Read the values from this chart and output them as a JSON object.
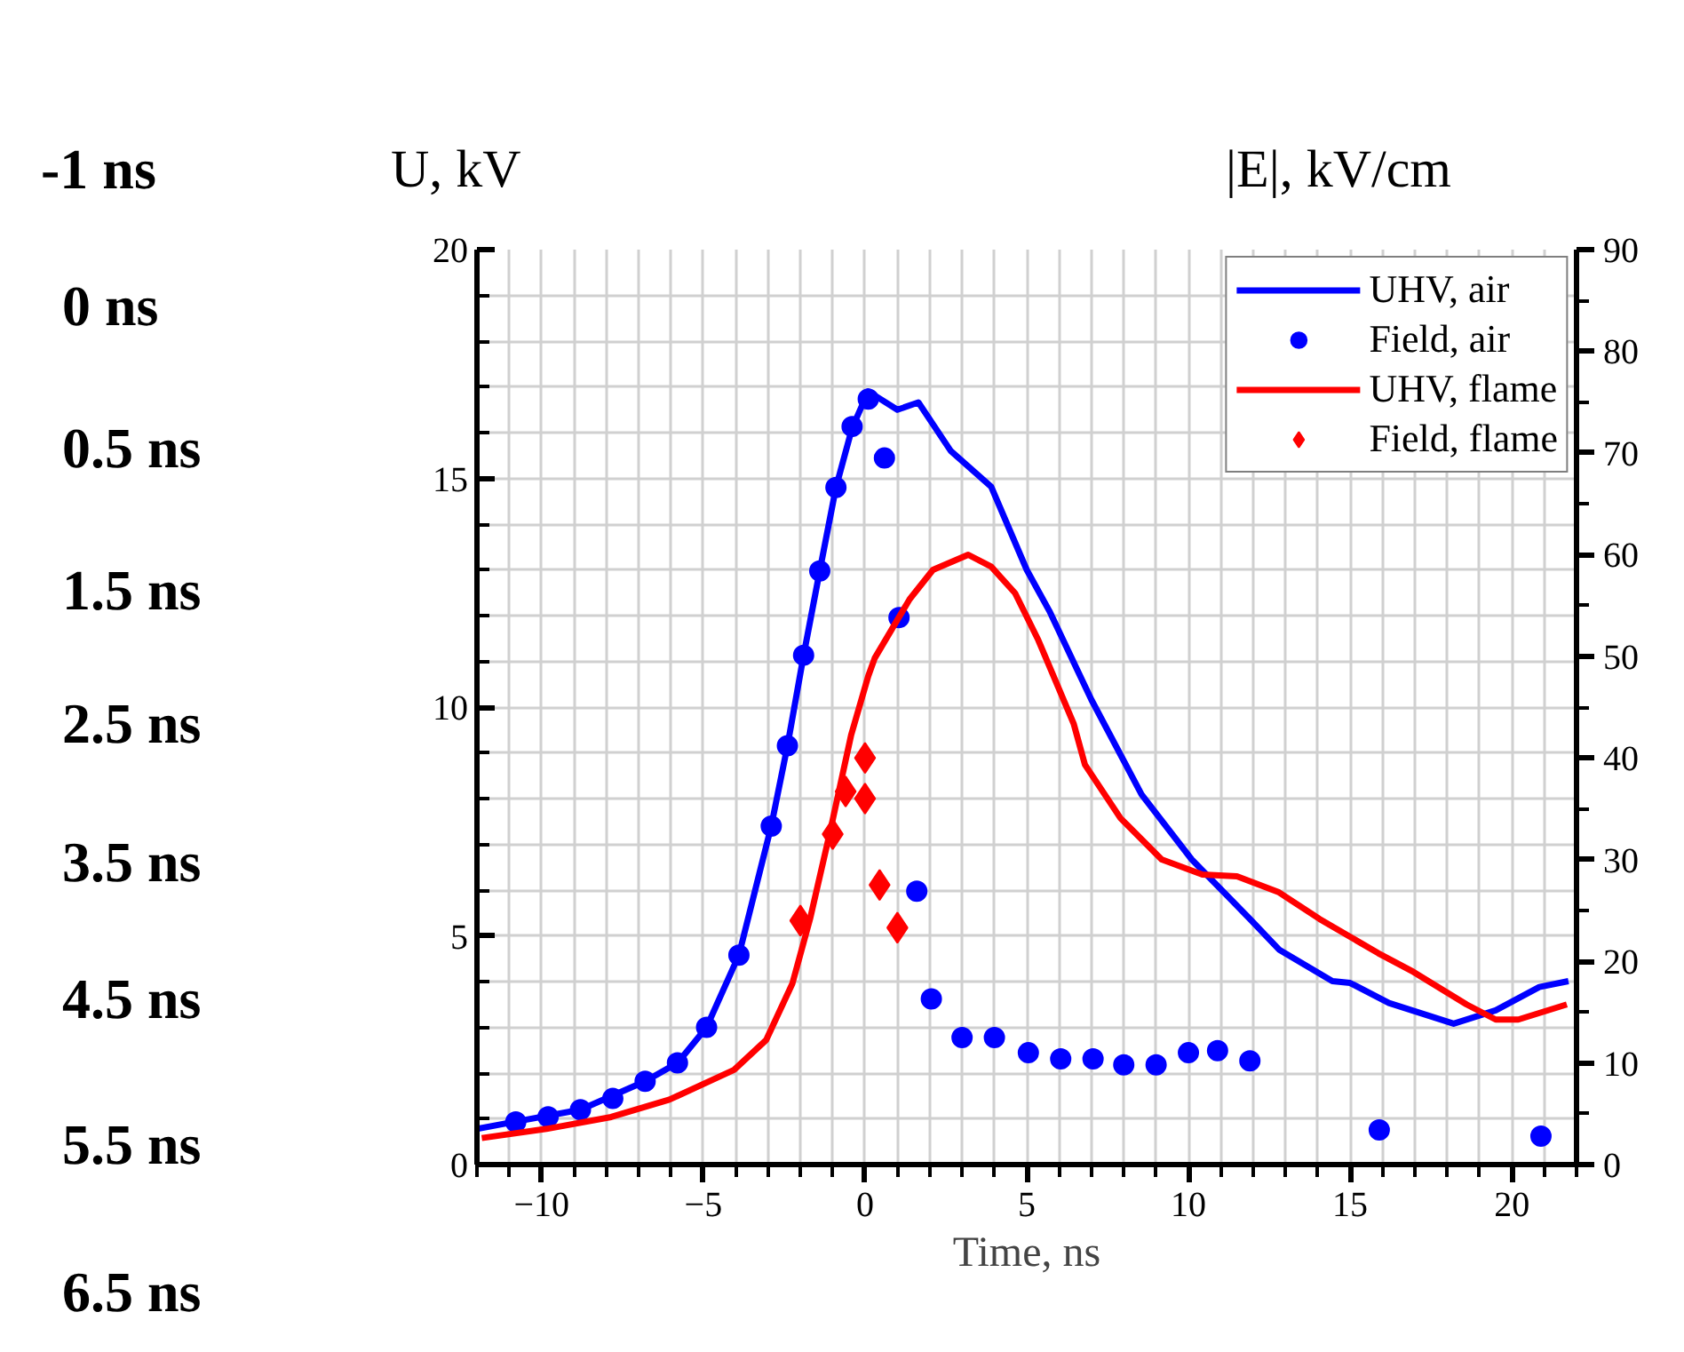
{
  "chart_data": {
    "type": "line",
    "xlabel": "Time, ns",
    "ylabel": "U, kV",
    "y2label": "|E|, kV/cm",
    "annotations": [
      "-1 ns",
      "0 ns",
      "0.5 ns",
      "1.5 ns",
      "2.5 ns",
      "3.5 ns",
      "4.5 ns",
      "5.5 ns",
      "6.5 ns"
    ],
    "xlim": [
      -12,
      22
    ],
    "xticks": [
      {
        "value": -12,
        "label": null
      },
      {
        "value": -11,
        "label": null
      },
      -10,
      {
        "value": -9,
        "label": null
      },
      {
        "value": -8,
        "label": null
      },
      {
        "value": -7,
        "label": null
      },
      {
        "value": -6,
        "label": null
      },
      -5,
      {
        "value": -4,
        "label": null
      },
      {
        "value": -3,
        "label": null
      },
      {
        "value": -2,
        "label": null
      },
      {
        "value": -1,
        "label": null
      },
      0,
      {
        "value": 1,
        "label": null
      },
      {
        "value": 2,
        "label": null
      },
      {
        "value": 3,
        "label": null
      },
      {
        "value": 4,
        "label": null
      },
      5,
      {
        "value": 6,
        "label": null
      },
      {
        "value": 7,
        "label": null
      },
      {
        "value": 8,
        "label": null
      },
      {
        "value": 9,
        "label": null
      },
      10,
      {
        "value": 11,
        "label": null
      },
      {
        "value": 12,
        "label": null
      },
      {
        "value": 13,
        "label": null
      },
      {
        "value": 14,
        "label": null
      },
      15,
      {
        "value": 16,
        "label": null
      },
      {
        "value": 17,
        "label": null
      },
      {
        "value": 18,
        "label": null
      },
      {
        "value": 19,
        "label": null
      },
      20,
      {
        "value": 21,
        "label": null
      },
      {
        "value": 22,
        "label": null
      }
    ],
    "ylim": [
      0,
      20
    ],
    "yticks": [
      0,
      {
        "value": 1,
        "label": null
      },
      {
        "value": 2,
        "label": null
      },
      {
        "value": 3,
        "label": null
      },
      {
        "value": 4,
        "label": null
      },
      5,
      {
        "value": 6,
        "label": null
      },
      {
        "value": 7,
        "label": null
      },
      {
        "value": 8,
        "label": null
      },
      {
        "value": 9,
        "label": null
      },
      10,
      {
        "value": 11,
        "label": null
      },
      {
        "value": 12,
        "label": null
      },
      {
        "value": 13,
        "label": null
      },
      {
        "value": 14,
        "label": null
      },
      15,
      {
        "value": 16,
        "label": null
      },
      {
        "value": 17,
        "label": null
      },
      {
        "value": 18,
        "label": null
      },
      {
        "value": 19,
        "label": null
      },
      20
    ],
    "y2lim": [
      0,
      90
    ],
    "y2ticks": [
      0,
      {
        "value": 5,
        "label": null
      },
      10,
      {
        "value": 15,
        "label": null
      },
      20,
      {
        "value": 25,
        "label": null
      },
      30,
      {
        "value": 35,
        "label": null
      },
      40,
      {
        "value": 45,
        "label": null
      },
      50,
      {
        "value": 55,
        "label": null
      },
      60,
      {
        "value": 65,
        "label": null
      },
      70,
      {
        "value": 75,
        "label": null
      },
      80,
      {
        "value": 85,
        "label": null
      },
      90
    ],
    "grid": true,
    "legend": "top right",
    "marker": "none",
    "line_style": "solid",
    "series": [
      {
        "name": "UHV, air",
        "color": "#0000ff",
        "x": [
          -12,
          -10.8,
          -8.8,
          -6.8,
          -5.8,
          -4.9,
          -3.9,
          -2.9,
          -2.4,
          -1.9,
          -1.4,
          -0.9,
          -0.4,
          0.1,
          1.0,
          1.65,
          2.65,
          3.9,
          5.0,
          5.7,
          7.0,
          8.55,
          10.1,
          11.9,
          12.8,
          14.45,
          15.0,
          16.2,
          18.2,
          19.5,
          20.85,
          21.75
        ],
        "values": [
          0.78,
          0.94,
          1.2,
          1.82,
          2.22,
          3.0,
          4.58,
          7.4,
          9.15,
          11.13,
          12.98,
          14.8,
          16.1,
          16.9,
          16.5,
          16.66,
          15.6,
          14.82,
          13.0,
          12.1,
          10.16,
          8.09,
          6.67,
          5.37,
          4.7,
          4.01,
          3.97,
          3.53,
          3.08,
          3.37,
          3.88,
          4.01
        ]
      },
      {
        "name": "Field, air",
        "type": "scatter",
        "marker": "circle",
        "axis": "y2",
        "color": "#0000ff",
        "x": [
          -10.8,
          -9.8,
          -8.8,
          -7.8,
          -6.8,
          -5.8,
          -4.9,
          -3.9,
          -2.9,
          -2.4,
          -1.9,
          -1.4,
          -0.9,
          -0.4,
          0.1,
          0.6,
          1.05,
          1.6,
          2.05,
          3.0,
          4.0,
          5.05,
          6.05,
          7.05,
          8.0,
          9.0,
          10.0,
          10.9,
          11.9,
          15.9,
          20.9
        ],
        "values": [
          4.2,
          4.7,
          5.4,
          6.5,
          8.2,
          10.0,
          13.5,
          20.6,
          33.3,
          41.2,
          50.1,
          58.4,
          66.6,
          72.6,
          75.3,
          69.5,
          53.8,
          26.9,
          16.3,
          12.5,
          12.5,
          11.0,
          10.4,
          10.4,
          9.8,
          9.8,
          11.0,
          11.2,
          10.2,
          3.4,
          2.8
        ]
      },
      {
        "name": "UHV, flame",
        "color": "#ff0000",
        "x": [
          -11.85,
          -9.85,
          -7.85,
          -6.05,
          -4.05,
          -3.06,
          -2.25,
          -1.7,
          -1.07,
          -0.43,
          0.1,
          0.3,
          1.38,
          2.1,
          3.19,
          3.9,
          4.64,
          5.36,
          6.45,
          6.8,
          7.9,
          9.17,
          10.43,
          11.5,
          12.8,
          14.05,
          15.87,
          16.96,
          18.6,
          19.5,
          20.2,
          21.7
        ],
        "values": [
          0.58,
          0.78,
          1.04,
          1.42,
          2.07,
          2.72,
          3.95,
          5.37,
          7.31,
          9.39,
          10.68,
          11.07,
          12.36,
          13.0,
          13.33,
          13.07,
          12.49,
          11.46,
          9.64,
          8.74,
          7.57,
          6.67,
          6.34,
          6.3,
          5.95,
          5.37,
          4.62,
          4.21,
          3.5,
          3.17,
          3.17,
          3.5
        ]
      },
      {
        "name": "Field, flame",
        "type": "scatter",
        "marker": "diamond",
        "axis": "y2",
        "color": "#ff0000",
        "x": [
          -2.0,
          -1.0,
          -0.6,
          0.0,
          0.0,
          0.45,
          1.0
        ],
        "values": [
          24.0,
          32.5,
          36.7,
          40.0,
          36.0,
          27.5,
          23.3
        ]
      }
    ]
  }
}
